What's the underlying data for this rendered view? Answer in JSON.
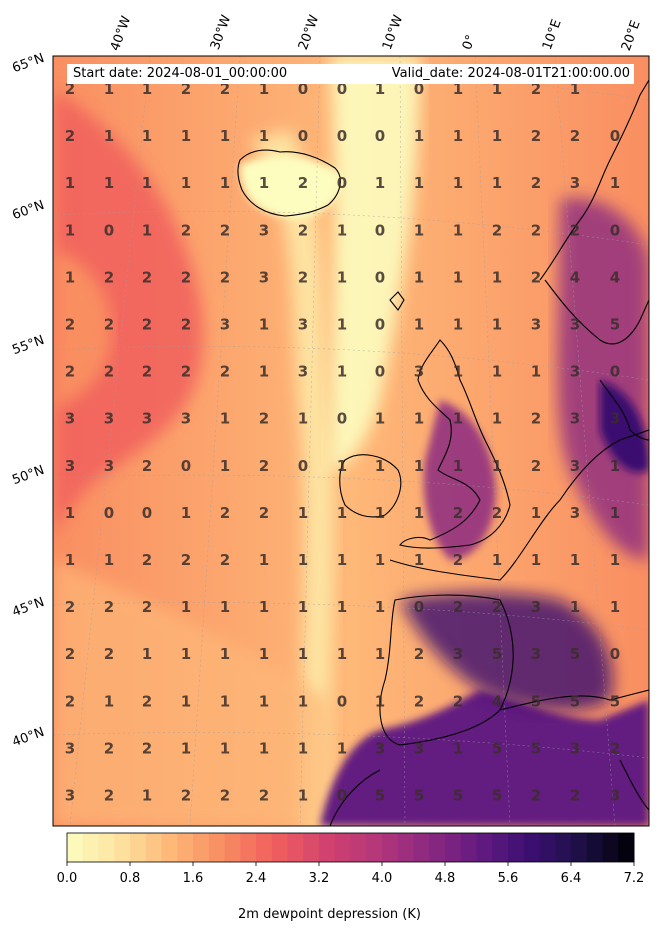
{
  "info": {
    "start_date": "Start date: 2024-08-01_00:00:00",
    "valid_date": "Valid_date: 2024-08-01T21:00:00.00"
  },
  "lon_labels": [
    "40°W",
    "30°W",
    "20°W",
    "10°W",
    "0°",
    "10°E",
    "20°E"
  ],
  "lat_labels": [
    "65°N",
    "60°N",
    "55°N",
    "50°N",
    "45°N",
    "40°N"
  ],
  "colorbar": {
    "label": "2m dewpoint depression (K)",
    "ticks": [
      "0.0",
      "0.8",
      "1.6",
      "2.4",
      "3.2",
      "4.0",
      "4.8",
      "5.6",
      "6.4",
      "7.2"
    ],
    "vmin": 0.0,
    "vmax": 7.2,
    "colormap": "magma_r",
    "colors": [
      "#fcfdbf",
      "#fde3a1",
      "#feb878",
      "#f98e61",
      "#f1605d",
      "#d3436e",
      "#b5367a",
      "#8c2981",
      "#641a80",
      "#3b0f70",
      "#1c1044",
      "#000004"
    ]
  },
  "grid_values": [
    [
      "2",
      "1",
      "1",
      "2",
      "2",
      "1",
      "0",
      "0",
      "1",
      "0",
      "1",
      "1",
      "2",
      "1",
      ""
    ],
    [
      "2",
      "1",
      "1",
      "1",
      "1",
      "1",
      "0",
      "0",
      "0",
      "1",
      "1",
      "1",
      "2",
      "2",
      "0"
    ],
    [
      "1",
      "1",
      "1",
      "1",
      "1",
      "1",
      "2",
      "0",
      "1",
      "1",
      "1",
      "1",
      "2",
      "3",
      "1"
    ],
    [
      "1",
      "0",
      "1",
      "2",
      "2",
      "3",
      "2",
      "1",
      "0",
      "1",
      "1",
      "2",
      "2",
      "2",
      "0"
    ],
    [
      "1",
      "2",
      "2",
      "2",
      "2",
      "3",
      "2",
      "1",
      "0",
      "1",
      "1",
      "1",
      "2",
      "4",
      "4"
    ],
    [
      "2",
      "2",
      "2",
      "2",
      "3",
      "1",
      "3",
      "1",
      "0",
      "1",
      "1",
      "1",
      "3",
      "3",
      "5"
    ],
    [
      "2",
      "2",
      "2",
      "2",
      "2",
      "1",
      "3",
      "1",
      "0",
      "3",
      "1",
      "1",
      "1",
      "3",
      "0"
    ],
    [
      "3",
      "3",
      "3",
      "3",
      "1",
      "2",
      "1",
      "0",
      "1",
      "1",
      "1",
      "1",
      "2",
      "3",
      "3"
    ],
    [
      "3",
      "3",
      "2",
      "0",
      "1",
      "2",
      "0",
      "1",
      "1",
      "1",
      "1",
      "1",
      "2",
      "3",
      "1"
    ],
    [
      "1",
      "0",
      "0",
      "1",
      "2",
      "2",
      "1",
      "1",
      "1",
      "1",
      "2",
      "2",
      "1",
      "3",
      "1"
    ],
    [
      "1",
      "1",
      "2",
      "2",
      "2",
      "1",
      "1",
      "1",
      "1",
      "1",
      "2",
      "1",
      "1",
      "1",
      "1"
    ],
    [
      "2",
      "2",
      "2",
      "1",
      "1",
      "1",
      "1",
      "1",
      "1",
      "0",
      "2",
      "2",
      "3",
      "1",
      "1"
    ],
    [
      "2",
      "2",
      "1",
      "1",
      "1",
      "1",
      "1",
      "1",
      "1",
      "2",
      "3",
      "5",
      "3",
      "5",
      "0"
    ],
    [
      "2",
      "1",
      "2",
      "1",
      "1",
      "1",
      "1",
      "0",
      "1",
      "2",
      "2",
      "4",
      "5",
      "5",
      "5"
    ],
    [
      "3",
      "2",
      "2",
      "1",
      "1",
      "1",
      "1",
      "1",
      "3",
      "3",
      "1",
      "5",
      "5",
      "3",
      "2"
    ],
    [
      "3",
      "2",
      "1",
      "2",
      "2",
      "2",
      "1",
      "0",
      "5",
      "5",
      "5",
      "5",
      "2",
      "2",
      "3"
    ]
  ]
}
